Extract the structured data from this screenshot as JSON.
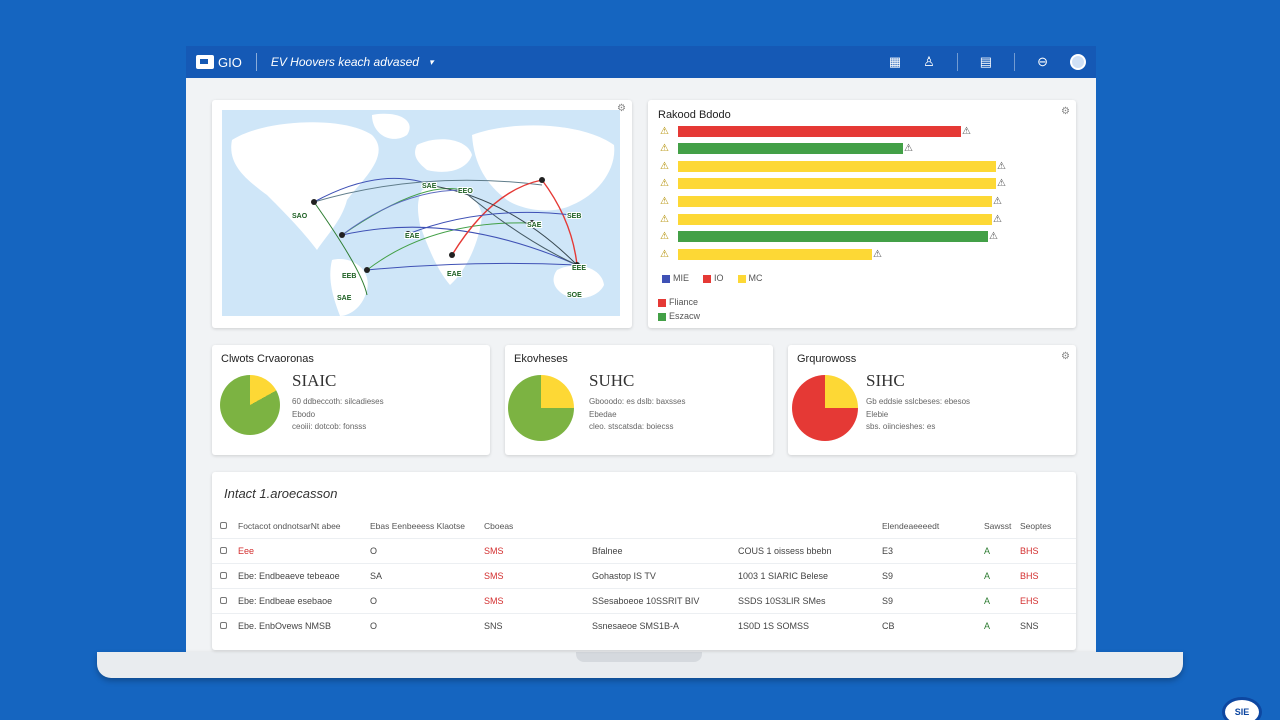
{
  "topbar": {
    "logo_text": "GIO",
    "title": "EV Hoovers keach advased",
    "caret": "▾",
    "icons": [
      "grid-icon",
      "user-icon",
      "document-icon",
      "help-icon"
    ]
  },
  "map_card": {
    "labels": [
      "SAO",
      "EEB",
      "SAE",
      "EAE",
      "EAE",
      "EEO",
      "SAE",
      "SEB",
      "SOE",
      "SAE",
      "EEE"
    ]
  },
  "bars_card": {
    "title": "Rakood Bdodo",
    "bars": [
      {
        "color": "#e53935",
        "value": 0.73
      },
      {
        "color": "#43a047",
        "value": 0.58
      },
      {
        "color": "#fdd835",
        "value": 0.82
      },
      {
        "color": "#fdd835",
        "value": 0.82
      },
      {
        "color": "#fdd835",
        "value": 0.81
      },
      {
        "color": "#fdd835",
        "value": 0.81
      },
      {
        "color": "#43a047",
        "value": 0.8
      },
      {
        "color": "#fdd835",
        "value": 0.5
      }
    ],
    "axis_legend": [
      "MIE",
      "IO",
      "MC"
    ],
    "legend": [
      {
        "label": "Fliance",
        "color": "#e53935"
      },
      {
        "label": "Eszacw",
        "color": "#43a047"
      }
    ]
  },
  "stats": [
    {
      "title": "Clwots Crvaoronas",
      "value": "SIAIC",
      "line1": "60 ddbeccoth: silcadieses",
      "line1b": "Ebodo",
      "line2": "ceoiii: dotcob: fonsss",
      "pie_main": "#7cb342",
      "pie_slice": "#fdd835",
      "slice": 0.17
    },
    {
      "title": "Ekovheses",
      "value": "SUHC",
      "line1": "Gbooodo: es dslb: baxsses",
      "line1b": "Ebedae",
      "line2": "cleo. stscatsda: boiecss",
      "pie_main": "#7cb342",
      "pie_slice": "#fdd835",
      "slice": 0.25
    },
    {
      "title": "Grqurowoss",
      "value": "SIHC",
      "line1": "Gb eddsie sslcbeses: ebesos",
      "line1b": "Elebie",
      "line2": "sbs. oiincieshes: es",
      "pie_main": "#e53935",
      "pie_slice": "#fdd835",
      "slice": 0.25
    }
  ],
  "table": {
    "title": "Intact 1.aroecasson",
    "headers": [
      "Foctacot ondnotsarNt abee",
      "Ebas Eenbeeess Klaotse",
      "Cboeas",
      "",
      "",
      "Elendeaeeeedt",
      "Sawsst",
      "Seoptes"
    ],
    "rows": [
      {
        "c1": "Eee",
        "c2": "O",
        "c3": "SMS",
        "c4": "Bfalnee",
        "c5": "COUS 1 oissess bbebn",
        "c6": "E3",
        "c7": "A",
        "c8": "BHS",
        "c3red": true,
        "c8red": true
      },
      {
        "c1": "Ebe: Endbeaeve tebeaoe",
        "c2": "SA",
        "c3": "SMS",
        "c4": "Gohastop IS TV",
        "c5": "1003 1 SIARIC Belese",
        "c6": "S9",
        "c7": "A",
        "c8": "BHS",
        "c3red": true,
        "c8red": true
      },
      {
        "c1": "Ebe: Endbeae esebaoe",
        "c2": "O",
        "c3": "SMS",
        "c4": "SSesaboeoe 10SSRIT BIV",
        "c5": "SSDS 10S3LIR SMes",
        "c6": "S9",
        "c7": "A",
        "c8": "EHS",
        "c3red": true,
        "c8red": true
      },
      {
        "c1": "Ebe. EnbOvews NMSB",
        "c2": "O",
        "c3": "SNS",
        "c4": "Ssnesaeoe SMS1B-A",
        "c5": "1S0D 1S SOMSS",
        "c6": "CB",
        "c7": "A",
        "c8": "SNS",
        "c3red": false,
        "c8red": false
      }
    ]
  },
  "corner_badge": "SIE"
}
